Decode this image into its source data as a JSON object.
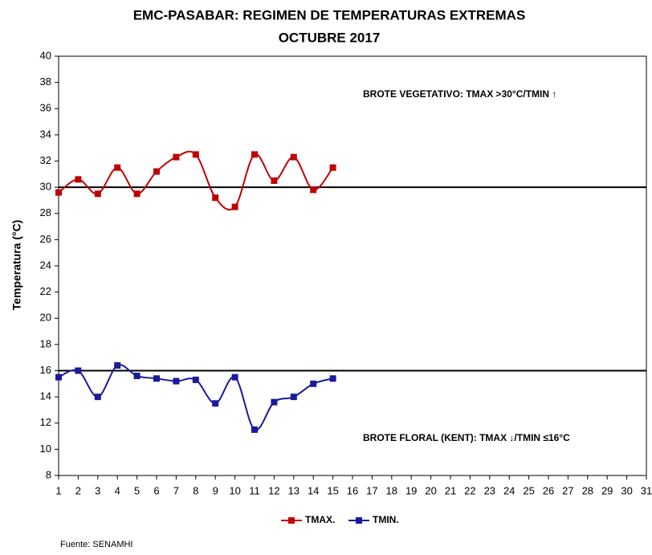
{
  "chart_data": {
    "type": "line",
    "title": "EMC-PASABAR: REGIMEN DE TEMPERATURAS EXTREMAS",
    "subtitle": "OCTUBRE 2017",
    "y_label": "Temperatura (°C)",
    "x": [
      1,
      2,
      3,
      4,
      5,
      6,
      7,
      8,
      9,
      10,
      11,
      12,
      13,
      14,
      15
    ],
    "series": [
      {
        "name": "TMAX.",
        "color": "#c00000",
        "values": [
          29.6,
          30.6,
          29.5,
          31.5,
          29.5,
          31.2,
          32.3,
          32.5,
          29.2,
          28.5,
          32.5,
          30.5,
          32.3,
          29.8,
          31.5
        ]
      },
      {
        "name": "TMIN.",
        "color": "#1a1a9c",
        "values": [
          15.5,
          16.0,
          14.0,
          16.4,
          15.6,
          15.4,
          15.2,
          15.3,
          13.5,
          15.5,
          11.5,
          13.6,
          14.0,
          15.0,
          15.4
        ]
      }
    ],
    "xlim": [
      1,
      31
    ],
    "xticks": [
      1,
      2,
      3,
      4,
      5,
      6,
      7,
      8,
      9,
      10,
      11,
      12,
      13,
      14,
      15,
      16,
      17,
      18,
      19,
      20,
      21,
      22,
      23,
      24,
      25,
      26,
      27,
      28,
      29,
      30,
      31
    ],
    "ylim": [
      8,
      40
    ],
    "yticks": [
      8,
      10,
      12,
      14,
      16,
      18,
      20,
      22,
      24,
      26,
      28,
      30,
      32,
      34,
      36,
      38,
      40
    ],
    "reference_lines": [
      30,
      16
    ],
    "smooth": true,
    "annotations": [
      "BROTE VEGETATIVO: TMAX >30°C/TMIN ↑",
      "BROTE FLORAL (KENT): TMAX ↓/TMIN ≤16°C"
    ],
    "source": "Fuente: SENAMHI"
  }
}
